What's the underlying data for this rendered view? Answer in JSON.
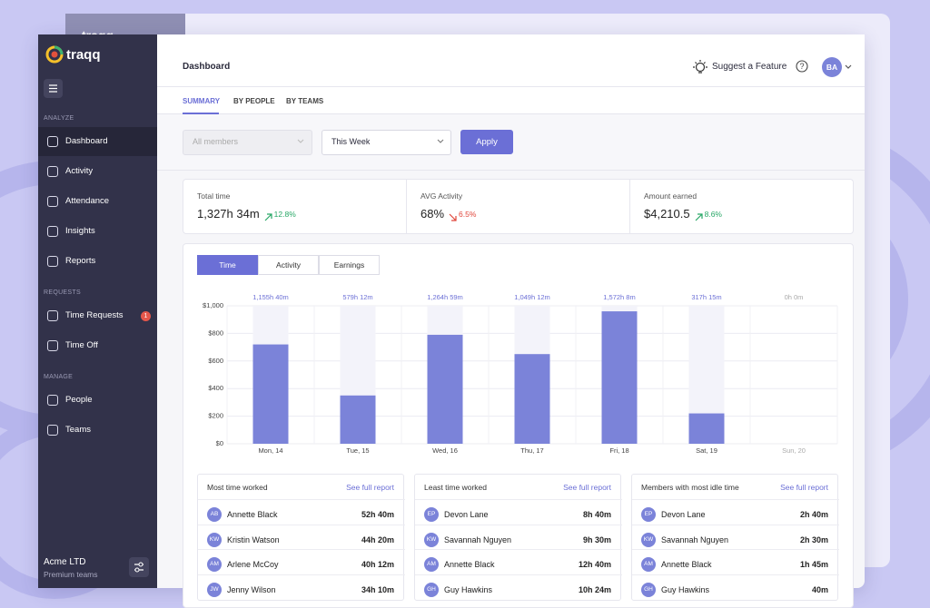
{
  "sidebar": {
    "brand": "traqq",
    "sections": [
      {
        "title": "ANALYZE",
        "items": [
          "Dashboard",
          "Activity",
          "Attendance",
          "Insights",
          "Reports"
        ]
      },
      {
        "title": "REQUESTS",
        "items": [
          "Time Requests",
          "Time Off"
        ]
      },
      {
        "title": "MANAGE",
        "items": [
          "People",
          "Teams"
        ]
      }
    ],
    "badge": "1",
    "company": "Acme LTD",
    "plan": "Premium teams"
  },
  "header": {
    "title": "Dashboard",
    "suggest": "Suggest a Feature",
    "avatar": "BA"
  },
  "tabs": [
    "SUMMARY",
    "BY PEOPLE",
    "BY TEAMS"
  ],
  "filters": {
    "members": "All members",
    "period": "This Week",
    "apply": "Apply"
  },
  "stats": [
    {
      "label": "Total time",
      "value": "1,327h 34m",
      "change": "12.8%"
    },
    {
      "label": "AVG Activity",
      "value": "68%",
      "change": "6.5%"
    },
    {
      "label": "Amount earned",
      "value": "$4,210.5",
      "change": "8.6%"
    }
  ],
  "chart_tabs": [
    "Time",
    "Activity",
    "Earnings"
  ],
  "chart_data": {
    "type": "bar",
    "categories": [
      "Mon, 14",
      "Tue, 15",
      "Wed, 16",
      "Thu, 17",
      "Fri, 18",
      "Sat, 19",
      "Sun, 20"
    ],
    "values": [
      720,
      350,
      790,
      650,
      960,
      220,
      0
    ],
    "top_labels": [
      "1,155h 40m",
      "579h 12m",
      "1,264h 59m",
      "1,049h 12m",
      "1,572h 8m",
      "317h 15m",
      "0h 0m"
    ],
    "color": "#7b83d9",
    "ylim": [
      0,
      1000
    ],
    "yticks": [
      {
        "value": 0,
        "label": "$0"
      },
      {
        "value": 200,
        "label": "$200"
      },
      {
        "value": 400,
        "label": "$400"
      },
      {
        "value": 600,
        "label": "$600"
      },
      {
        "value": 800,
        "label": "$800"
      },
      {
        "value": 1000,
        "label": "$1,000"
      }
    ],
    "grid": true
  },
  "lists": [
    {
      "title": "Most time worked",
      "link": "See full report",
      "rows": [
        [
          "AB",
          "Annette Black",
          "52h 40m"
        ],
        [
          "KW",
          "Kristin Watson",
          "44h 20m"
        ],
        [
          "AM",
          "Arlene McCoy",
          "40h 12m"
        ],
        [
          "JW",
          "Jenny Wilson",
          "34h 10m"
        ]
      ]
    },
    {
      "title": "Least time worked",
      "link": "See full report",
      "rows": [
        [
          "EP",
          "Devon Lane",
          "8h 40m"
        ],
        [
          "KW",
          "Savannah Nguyen",
          "9h 30m"
        ],
        [
          "AM",
          "Annette Black",
          "12h 40m"
        ],
        [
          "GH",
          "Guy Hawkins",
          "10h 24m"
        ]
      ]
    },
    {
      "title": "Members with most idle time",
      "link": "See full report",
      "rows": [
        [
          "EP",
          "Devon Lane",
          "2h 40m"
        ],
        [
          "KW",
          "Savannah Nguyen",
          "2h 30m"
        ],
        [
          "AM",
          "Annette Black",
          "1h 45m"
        ],
        [
          "GH",
          "Guy Hawkins",
          "40m"
        ]
      ]
    }
  ]
}
